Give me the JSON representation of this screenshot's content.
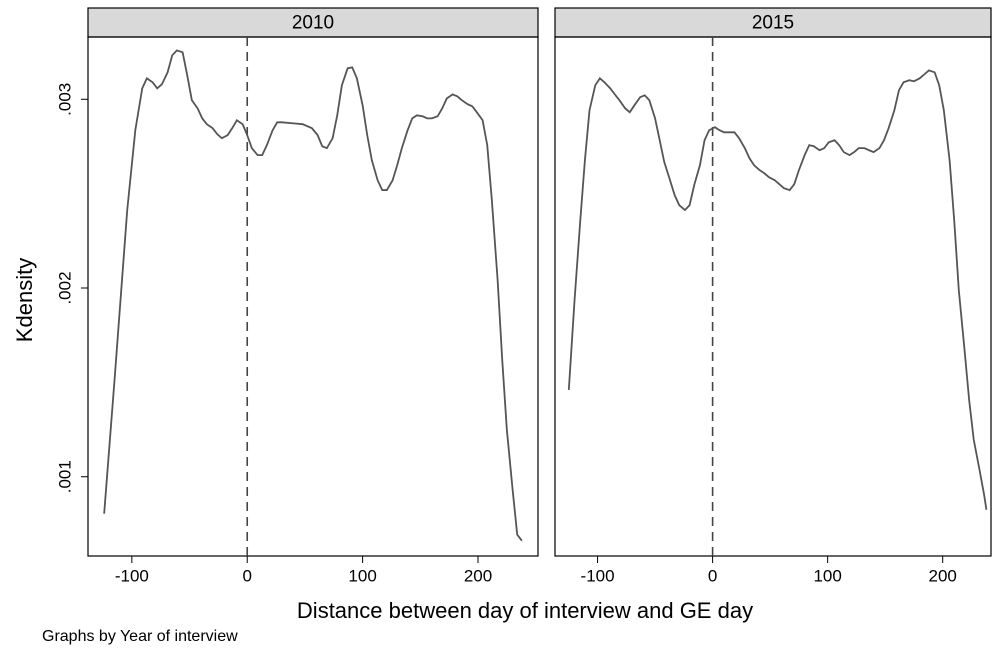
{
  "chart_data": [
    {
      "type": "line",
      "title": "2010",
      "x": [
        -124,
        -115,
        -104,
        -97,
        -91,
        -87,
        -82,
        -78,
        -74,
        -69,
        -65,
        -61,
        -56,
        -52,
        -48,
        -43,
        -39,
        -35,
        -30,
        -26,
        -22,
        -17,
        -13,
        -9,
        -4,
        0,
        4,
        9,
        13,
        17,
        22,
        26,
        30,
        39,
        48,
        56,
        61,
        65,
        69,
        74,
        78,
        82,
        87,
        91,
        95,
        100,
        104,
        108,
        113,
        117,
        121,
        126,
        130,
        134,
        139,
        143,
        147,
        152,
        156,
        160,
        165,
        169,
        173,
        178,
        182,
        186,
        191,
        195,
        199,
        204,
        208,
        212,
        217,
        221,
        225,
        230,
        234,
        238
      ],
      "values": [
        0.000804,
        0.001513,
        0.002413,
        0.002836,
        0.003058,
        0.003111,
        0.00309,
        0.003058,
        0.003079,
        0.003143,
        0.003233,
        0.003259,
        0.003249,
        0.003127,
        0.002995,
        0.002952,
        0.002899,
        0.002868,
        0.002847,
        0.002815,
        0.002794,
        0.00281,
        0.002847,
        0.002889,
        0.002868,
        0.00281,
        0.002741,
        0.002704,
        0.002704,
        0.002757,
        0.002836,
        0.002878,
        0.002878,
        0.002873,
        0.002868,
        0.002847,
        0.00281,
        0.002751,
        0.002741,
        0.002794,
        0.002915,
        0.003074,
        0.003164,
        0.003169,
        0.003111,
        0.002968,
        0.00281,
        0.002677,
        0.002571,
        0.002519,
        0.002519,
        0.002571,
        0.002651,
        0.002741,
        0.002836,
        0.002899,
        0.002915,
        0.00291,
        0.002899,
        0.002899,
        0.00291,
        0.002952,
        0.003005,
        0.003026,
        0.003016,
        0.002995,
        0.002974,
        0.002963,
        0.002931,
        0.002889,
        0.002757,
        0.002466,
        0.002042,
        0.001619,
        0.001249,
        0.000931,
        0.000693,
        0.000661
      ],
      "color": "#555555",
      "xline": 0,
      "xlim": [
        -138,
        252
      ],
      "ylim": [
        0.00058,
        0.00333
      ],
      "xticks": [
        -100,
        0,
        100,
        200
      ],
      "yticks": [
        {
          "value": 0.001,
          "label": ".001"
        },
        {
          "value": 0.002,
          "label": ".002"
        },
        {
          "value": 0.003,
          "label": ".003"
        }
      ]
    },
    {
      "type": "line",
      "title": "2015",
      "x": [
        -125,
        -120,
        -115,
        -111,
        -107,
        -102,
        -98,
        -94,
        -89,
        -85,
        -81,
        -76,
        -72,
        -68,
        -63,
        -59,
        -55,
        -50,
        -46,
        -42,
        -37,
        -33,
        -29,
        -24,
        -20,
        -16,
        -11,
        -7,
        -3,
        2,
        6,
        10,
        15,
        19,
        23,
        28,
        32,
        36,
        41,
        45,
        49,
        54,
        58,
        62,
        67,
        71,
        75,
        80,
        84,
        88,
        93,
        97,
        101,
        106,
        110,
        114,
        119,
        123,
        127,
        132,
        136,
        140,
        145,
        149,
        153,
        158,
        162,
        166,
        171,
        175,
        180,
        184,
        188,
        193,
        197,
        201,
        206,
        210,
        214,
        219,
        223,
        227,
        232,
        236,
        238
      ],
      "values": [
        0.00146,
        0.001937,
        0.00236,
        0.002677,
        0.002942,
        0.003074,
        0.003111,
        0.00309,
        0.003058,
        0.003026,
        0.002995,
        0.002952,
        0.002931,
        0.002968,
        0.003011,
        0.003021,
        0.002995,
        0.002899,
        0.002783,
        0.002667,
        0.002571,
        0.002492,
        0.002439,
        0.002413,
        0.002439,
        0.002545,
        0.002651,
        0.002783,
        0.002836,
        0.002852,
        0.002836,
        0.002825,
        0.002825,
        0.002825,
        0.002794,
        0.002741,
        0.002688,
        0.002651,
        0.002624,
        0.002608,
        0.002587,
        0.002571,
        0.00255,
        0.002529,
        0.002519,
        0.00255,
        0.002624,
        0.002704,
        0.002757,
        0.002751,
        0.00273,
        0.002741,
        0.002772,
        0.002783,
        0.002757,
        0.00272,
        0.002704,
        0.00272,
        0.002741,
        0.002741,
        0.00273,
        0.00272,
        0.002741,
        0.002783,
        0.002847,
        0.002942,
        0.003048,
        0.00309,
        0.003101,
        0.003095,
        0.003111,
        0.003132,
        0.003153,
        0.003143,
        0.003074,
        0.002942,
        0.002677,
        0.00236,
        0.001989,
        0.001672,
        0.001407,
        0.001196,
        0.001037,
        0.000905,
        0.000825
      ],
      "color": "#555555",
      "xline": 0,
      "xlim": [
        -137,
        242
      ],
      "ylim": [
        0.00058,
        0.00333
      ],
      "xticks": [
        -100,
        0,
        100,
        200
      ]
    }
  ],
  "ylabel": "Kdensity",
  "xlabel": "Distance between day of interview and GE day",
  "note": "Graphs by Year of interview"
}
